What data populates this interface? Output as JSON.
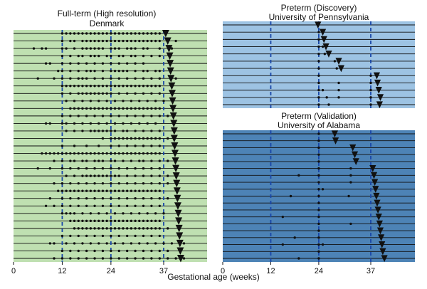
{
  "figure": {
    "xlabel": "Gestational age (weeks)",
    "x_ticks": [
      0,
      12,
      24,
      37
    ],
    "colors": {
      "term": "#bfe0b1",
      "discovery": "#9dc3e3",
      "validation": "#4d83b6",
      "row_line": "#111111",
      "vline": "#1846a8",
      "marker": "#111111"
    }
  },
  "chart_data": [
    {
      "type": "scatter",
      "title": "Full-term (High resolution)",
      "subtitle": "Denmark",
      "xlabel": "Gestational age (weeks)",
      "xlim": [
        0,
        46
      ],
      "x_ticks": [
        0,
        12,
        24,
        37
      ],
      "reference_lines_x": [
        12,
        24,
        37
      ],
      "row_count": 31,
      "marker_meaning": {
        "dot": "sample time",
        "triangle": "delivery"
      },
      "rows": [
        {
          "samples": [
            12,
            13,
            14,
            15,
            16,
            17,
            18,
            19,
            20,
            21,
            22,
            23,
            24,
            25,
            26,
            27,
            28,
            29,
            30,
            31,
            32,
            33,
            34,
            35,
            36
          ],
          "delivery": 37.5
        },
        {
          "samples": [
            12,
            14,
            15,
            17,
            18,
            19,
            20,
            21,
            22,
            23,
            24,
            25,
            26,
            27,
            28,
            29,
            30,
            31,
            32,
            33,
            34,
            35,
            36,
            40
          ],
          "delivery": 38
        },
        {
          "samples": [
            5,
            7,
            8,
            12,
            13,
            15,
            17,
            18,
            19,
            20,
            21,
            22,
            24,
            25,
            26,
            28,
            29,
            30,
            32,
            33,
            36,
            39
          ],
          "delivery": 38.3
        },
        {
          "samples": [
            12,
            14,
            16,
            17,
            19,
            20,
            21,
            23,
            24,
            26,
            27,
            29,
            30,
            32,
            34,
            36
          ],
          "delivery": 38.5
        },
        {
          "samples": [
            8,
            9,
            12,
            14,
            16,
            18,
            20,
            22,
            24,
            26,
            28,
            30,
            32
          ],
          "delivery": 38.6
        },
        {
          "samples": [
            11,
            12,
            14,
            16,
            18,
            19,
            20,
            22,
            24,
            25,
            26,
            27,
            28,
            30,
            32,
            33,
            35,
            36
          ],
          "delivery": 38.7
        },
        {
          "samples": [
            6,
            10,
            12,
            14,
            16,
            17,
            18,
            20,
            22,
            24,
            26,
            28,
            30,
            32,
            34,
            36,
            40
          ],
          "delivery": 38.8
        },
        {
          "samples": [
            12,
            13,
            14,
            15,
            16,
            17,
            18,
            19,
            20,
            21,
            22,
            23,
            24,
            25,
            26,
            27,
            28,
            29,
            30,
            31,
            32,
            33,
            34,
            35,
            36
          ],
          "delivery": 39.0
        },
        {
          "samples": [
            12,
            14,
            16,
            17,
            18,
            19,
            20,
            21,
            22,
            23,
            24,
            26,
            28,
            30,
            32,
            34,
            36
          ],
          "delivery": 39.1
        },
        {
          "samples": [
            13,
            15,
            17,
            19,
            21,
            23,
            25,
            27,
            29,
            31,
            33,
            35,
            37
          ],
          "delivery": 39.2
        },
        {
          "samples": [
            14,
            15,
            16,
            17,
            18,
            19,
            20,
            21,
            22,
            23,
            24,
            25,
            26,
            27,
            28,
            29,
            30,
            31,
            32,
            33,
            34,
            35,
            36
          ],
          "delivery": 39.3
        },
        {
          "samples": [
            12,
            14,
            16,
            18,
            20,
            22,
            24,
            26,
            28,
            30,
            32,
            34,
            36,
            38
          ],
          "delivery": 39.4
        },
        {
          "samples": [
            8,
            9,
            12,
            13,
            15,
            17,
            19,
            21,
            23,
            25,
            27,
            29,
            31,
            33,
            35
          ],
          "delivery": 39.5
        },
        {
          "samples": [
            13,
            15,
            17,
            19,
            20,
            21,
            22,
            23,
            24,
            25,
            27,
            28,
            30,
            32,
            34,
            36
          ],
          "delivery": 39.6
        },
        {
          "samples": [
            22,
            24,
            25,
            26,
            27,
            28,
            29,
            30,
            31,
            32,
            33,
            34,
            35,
            36,
            38
          ],
          "delivery": 39.6
        },
        {
          "samples": [
            12,
            15,
            18,
            21,
            24,
            26,
            28,
            30,
            32,
            34,
            36
          ],
          "delivery": 39.7
        },
        {
          "samples": [
            7,
            8,
            9,
            10,
            11,
            12,
            13,
            14,
            15,
            16,
            17,
            18,
            19,
            20,
            21,
            22,
            23,
            24,
            25,
            26,
            27,
            28,
            29,
            30,
            31,
            32,
            33,
            34,
            35,
            36
          ],
          "delivery": 39.8
        },
        {
          "samples": [
            10,
            12,
            14,
            15,
            17,
            18,
            20,
            21,
            22,
            24,
            25,
            27,
            29,
            31,
            32,
            34,
            36,
            38
          ],
          "delivery": 39.9
        },
        {
          "samples": [
            6,
            9,
            12,
            14,
            16,
            18,
            20,
            22,
            24,
            26,
            28,
            30,
            32,
            34,
            36,
            40
          ],
          "delivery": 40.0
        },
        {
          "samples": [
            13,
            15,
            17,
            18,
            19,
            20,
            21,
            22,
            23,
            24,
            25,
            26,
            28,
            30,
            32,
            34,
            36,
            38
          ],
          "delivery": 40.1
        },
        {
          "samples": [
            10,
            12,
            14,
            16,
            18,
            20,
            22,
            24,
            26,
            28,
            30,
            32,
            34,
            36,
            38
          ],
          "delivery": 40.2
        },
        {
          "samples": [
            11,
            12,
            13,
            14,
            15,
            16,
            17,
            18,
            19,
            20,
            21,
            22,
            23,
            24,
            25,
            26,
            27,
            28,
            29,
            30,
            31,
            32,
            33,
            34,
            35,
            36
          ],
          "delivery": 40.3
        },
        {
          "samples": [
            9,
            12,
            14,
            16,
            18,
            20,
            22,
            24,
            26,
            28,
            30,
            32,
            34,
            36,
            38
          ],
          "delivery": 40.4
        },
        {
          "samples": [
            8,
            10,
            12,
            14,
            16,
            18,
            20,
            22,
            24,
            26,
            28,
            30,
            32,
            34,
            36
          ],
          "delivery": 40.5
        },
        {
          "samples": [
            12,
            13,
            14,
            15,
            17,
            19,
            21,
            23,
            25,
            27,
            29,
            31,
            33,
            35,
            37
          ],
          "delivery": 40.6
        },
        {
          "samples": [
            14,
            15,
            16,
            17,
            18,
            19,
            20,
            21,
            22,
            23,
            24,
            25,
            26,
            27,
            28,
            29,
            30,
            31,
            32,
            33,
            34,
            35,
            36
          ],
          "delivery": 40.7
        },
        {
          "samples": [
            15,
            16,
            17,
            18,
            19,
            20,
            21,
            22,
            23,
            24,
            25,
            26,
            27,
            28,
            29,
            30,
            31,
            32,
            33,
            34,
            35,
            36,
            38
          ],
          "delivery": 40.8
        },
        {
          "samples": [
            12,
            14,
            16,
            18,
            20,
            22,
            24,
            26,
            28,
            30,
            32,
            34,
            36,
            41
          ],
          "delivery": 40.9
        },
        {
          "samples": [
            9,
            10,
            13,
            15,
            17,
            19,
            21,
            23,
            25,
            27,
            29,
            31,
            33,
            35,
            37,
            39,
            42
          ],
          "delivery": 41.0
        },
        {
          "samples": [
            12,
            14,
            16,
            18,
            20,
            22,
            24,
            26,
            28,
            30,
            32,
            34,
            36,
            38
          ],
          "delivery": 41.1
        },
        {
          "samples": [
            10,
            12,
            14,
            16,
            18,
            20,
            22,
            24,
            26,
            28,
            30,
            32,
            34,
            36,
            38,
            40,
            42
          ],
          "delivery": 41.2
        }
      ]
    },
    {
      "type": "scatter",
      "title": "Preterm (Discovery)",
      "subtitle": "University of Pennsylvania",
      "xlim": [
        0,
        46
      ],
      "x_ticks": [
        0,
        12,
        24,
        37
      ],
      "reference_lines_x": [
        12,
        24,
        37
      ],
      "row_count": 12,
      "marker_meaning": {
        "dot": "sample time",
        "triangle": "delivery"
      },
      "rows": [
        {
          "samples": [],
          "delivery": 23.8
        },
        {
          "samples": [
            24
          ],
          "delivery": 25.0
        },
        {
          "samples": [
            24
          ],
          "delivery": 25.3
        },
        {
          "samples": [
            24,
            25
          ],
          "delivery": 25.8
        },
        {
          "samples": [
            24,
            25.5
          ],
          "delivery": 26.5
        },
        {
          "samples": [
            24,
            28
          ],
          "delivery": 29.0
        },
        {
          "samples": [
            24,
            28.5
          ],
          "delivery": 29.6
        },
        {
          "samples": [
            24,
            37
          ],
          "delivery": 38.5
        },
        {
          "samples": [
            24,
            29,
            37
          ],
          "delivery": 38.7
        },
        {
          "samples": [
            24,
            25,
            29,
            37
          ],
          "delivery": 39.0
        },
        {
          "samples": [
            24,
            26,
            29,
            37
          ],
          "delivery": 39.4
        },
        {
          "samples": [
            24,
            26.5,
            37
          ],
          "delivery": 39.2
        }
      ]
    },
    {
      "type": "scatter",
      "title": "Preterm (Validation)",
      "subtitle": "University of Alabama",
      "xlim": [
        0,
        46
      ],
      "x_ticks": [
        0,
        12,
        24,
        37
      ],
      "reference_lines_x": [
        12,
        24,
        37
      ],
      "row_count": 19,
      "marker_meaning": {
        "dot": "sample time",
        "triangle": "delivery"
      },
      "rows": [
        {
          "samples": [
            24
          ],
          "delivery": 28.0
        },
        {
          "samples": [
            24
          ],
          "delivery": 28.2
        },
        {
          "samples": [
            24
          ],
          "delivery": 32.5
        },
        {
          "samples": [
            24
          ],
          "delivery": 33.0
        },
        {
          "samples": [
            24
          ],
          "delivery": 33.3
        },
        {
          "samples": [
            24,
            32
          ],
          "delivery": 37.5
        },
        {
          "samples": [
            19,
            24,
            32
          ],
          "delivery": 37.8
        },
        {
          "samples": [
            24,
            32
          ],
          "delivery": 38.0
        },
        {
          "samples": [
            24,
            25
          ],
          "delivery": 38.2
        },
        {
          "samples": [
            17,
            24,
            31.5
          ],
          "delivery": 38.4
        },
        {
          "samples": [
            24
          ],
          "delivery": 38.6
        },
        {
          "samples": [
            24
          ],
          "delivery": 38.8
        },
        {
          "samples": [
            15,
            24
          ],
          "delivery": 39.0
        },
        {
          "samples": [
            24,
            32
          ],
          "delivery": 39.2
        },
        {
          "samples": [
            24
          ],
          "delivery": 39.4
        },
        {
          "samples": [
            18,
            24
          ],
          "delivery": 39.6
        },
        {
          "samples": [
            15,
            24,
            25
          ],
          "delivery": 39.8
        },
        {
          "samples": [
            24
          ],
          "delivery": 40.0
        },
        {
          "samples": [
            19,
            24
          ],
          "delivery": 40.4
        }
      ]
    }
  ]
}
